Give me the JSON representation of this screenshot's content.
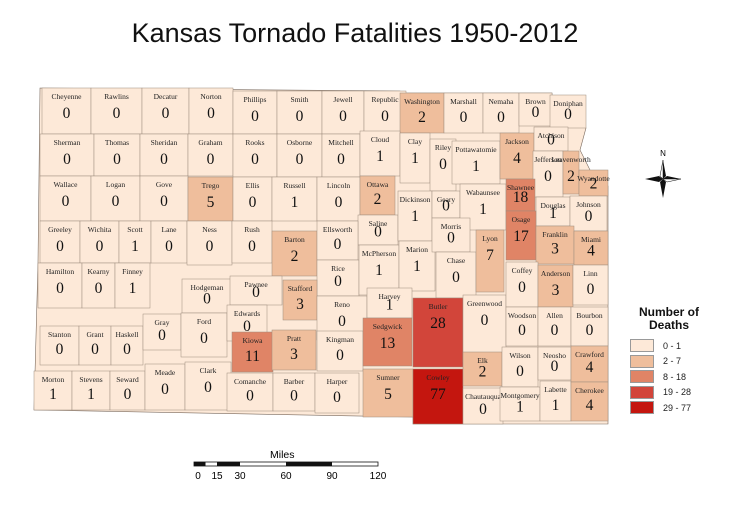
{
  "title": "Kansas Tornado Fatalities 1950-2012",
  "legend": {
    "title_line1": "Number of",
    "title_line2": "Deaths",
    "classes": [
      {
        "label": "0 - 1",
        "color": "#fde9d8"
      },
      {
        "label": "2 - 7",
        "color": "#efbe9c"
      },
      {
        "label": "8 - 18",
        "color": "#e08466"
      },
      {
        "label": "19 - 28",
        "color": "#d2453a"
      },
      {
        "label": "29 - 77",
        "color": "#c4160f"
      }
    ]
  },
  "scale_bar": {
    "units": "Miles",
    "ticks": [
      "0",
      "15",
      "30",
      "60",
      "90",
      "120"
    ]
  },
  "north_arrow": {
    "label": "N",
    "icon": "compass-rose-icon"
  },
  "counties": [
    {
      "name": "Cheyenne",
      "deaths": 0
    },
    {
      "name": "Rawlins",
      "deaths": 0
    },
    {
      "name": "Decatur",
      "deaths": 0
    },
    {
      "name": "Norton",
      "deaths": 0
    },
    {
      "name": "Phillips",
      "deaths": 0
    },
    {
      "name": "Smith",
      "deaths": 0
    },
    {
      "name": "Jewell",
      "deaths": 0
    },
    {
      "name": "Republic",
      "deaths": 0
    },
    {
      "name": "Washington",
      "deaths": 2
    },
    {
      "name": "Marshall",
      "deaths": 0
    },
    {
      "name": "Nemaha",
      "deaths": 0
    },
    {
      "name": "Brown",
      "deaths": 0
    },
    {
      "name": "Doniphan",
      "deaths": 0
    },
    {
      "name": "Sherman",
      "deaths": 0
    },
    {
      "name": "Thomas",
      "deaths": 0
    },
    {
      "name": "Sheridan",
      "deaths": 0
    },
    {
      "name": "Graham",
      "deaths": 0
    },
    {
      "name": "Rooks",
      "deaths": 0
    },
    {
      "name": "Osborne",
      "deaths": 0
    },
    {
      "name": "Mitchell",
      "deaths": 0
    },
    {
      "name": "Cloud",
      "deaths": 1
    },
    {
      "name": "Clay",
      "deaths": 1
    },
    {
      "name": "Riley",
      "deaths": 0
    },
    {
      "name": "Pottawatomie",
      "deaths": 1
    },
    {
      "name": "Jackson",
      "deaths": 4
    },
    {
      "name": "Atchison",
      "deaths": 0
    },
    {
      "name": "Jefferson",
      "deaths": 0
    },
    {
      "name": "Leavenworth",
      "deaths": 2
    },
    {
      "name": "Wyandotte",
      "deaths": 2
    },
    {
      "name": "Wallace",
      "deaths": 0
    },
    {
      "name": "Logan",
      "deaths": 0
    },
    {
      "name": "Gove",
      "deaths": 0
    },
    {
      "name": "Trego",
      "deaths": 5
    },
    {
      "name": "Ellis",
      "deaths": 0
    },
    {
      "name": "Russell",
      "deaths": 1
    },
    {
      "name": "Lincoln",
      "deaths": 0
    },
    {
      "name": "Ottawa",
      "deaths": 2
    },
    {
      "name": "Saline",
      "deaths": 0
    },
    {
      "name": "Dickinson",
      "deaths": 1
    },
    {
      "name": "Geary",
      "deaths": 0
    },
    {
      "name": "Wabaunsee",
      "deaths": 1
    },
    {
      "name": "Shawnee",
      "deaths": 18
    },
    {
      "name": "Douglas",
      "deaths": 1
    },
    {
      "name": "Johnson",
      "deaths": 0
    },
    {
      "name": "Greeley",
      "deaths": 0
    },
    {
      "name": "Wichita",
      "deaths": 0
    },
    {
      "name": "Scott",
      "deaths": 1
    },
    {
      "name": "Lane",
      "deaths": 0
    },
    {
      "name": "Ness",
      "deaths": 0
    },
    {
      "name": "Rush",
      "deaths": 0
    },
    {
      "name": "Barton",
      "deaths": 2
    },
    {
      "name": "Ellsworth",
      "deaths": 0
    },
    {
      "name": "Rice",
      "deaths": 0
    },
    {
      "name": "McPherson",
      "deaths": 1
    },
    {
      "name": "Marion",
      "deaths": 1
    },
    {
      "name": "Morris",
      "deaths": 0
    },
    {
      "name": "Chase",
      "deaths": 0
    },
    {
      "name": "Lyon",
      "deaths": 7
    },
    {
      "name": "Osage",
      "deaths": 17
    },
    {
      "name": "Franklin",
      "deaths": 3
    },
    {
      "name": "Miami",
      "deaths": 4
    },
    {
      "name": "Hamilton",
      "deaths": 0
    },
    {
      "name": "Kearny",
      "deaths": 0
    },
    {
      "name": "Finney",
      "deaths": 1
    },
    {
      "name": "Hodgeman",
      "deaths": 0
    },
    {
      "name": "Pawnee",
      "deaths": 0
    },
    {
      "name": "Stafford",
      "deaths": 3
    },
    {
      "name": "Reno",
      "deaths": 0
    },
    {
      "name": "Harvey",
      "deaths": 1
    },
    {
      "name": "Butler",
      "deaths": 28
    },
    {
      "name": "Greenwood",
      "deaths": 0
    },
    {
      "name": "Coffey",
      "deaths": 0
    },
    {
      "name": "Anderson",
      "deaths": 3
    },
    {
      "name": "Linn",
      "deaths": 0
    },
    {
      "name": "Stanton",
      "deaths": 0
    },
    {
      "name": "Grant",
      "deaths": 0
    },
    {
      "name": "Haskell",
      "deaths": 0
    },
    {
      "name": "Gray",
      "deaths": 0
    },
    {
      "name": "Ford",
      "deaths": 0
    },
    {
      "name": "Edwards",
      "deaths": 0
    },
    {
      "name": "Kiowa",
      "deaths": 11
    },
    {
      "name": "Pratt",
      "deaths": 3
    },
    {
      "name": "Kingman",
      "deaths": 0
    },
    {
      "name": "Sedgwick",
      "deaths": 13
    },
    {
      "name": "Woodson",
      "deaths": 0
    },
    {
      "name": "Allen",
      "deaths": 0
    },
    {
      "name": "Bourbon",
      "deaths": 0
    },
    {
      "name": "Morton",
      "deaths": 1
    },
    {
      "name": "Stevens",
      "deaths": 1
    },
    {
      "name": "Seward",
      "deaths": 0
    },
    {
      "name": "Meade",
      "deaths": 0
    },
    {
      "name": "Clark",
      "deaths": 0
    },
    {
      "name": "Comanche",
      "deaths": 0
    },
    {
      "name": "Barber",
      "deaths": 0
    },
    {
      "name": "Harper",
      "deaths": 0
    },
    {
      "name": "Sumner",
      "deaths": 5
    },
    {
      "name": "Cowley",
      "deaths": 77
    },
    {
      "name": "Elk",
      "deaths": 2
    },
    {
      "name": "Chautauqua",
      "deaths": 0
    },
    {
      "name": "Wilson",
      "deaths": 0
    },
    {
      "name": "Neosho",
      "deaths": 0
    },
    {
      "name": "Montgomery",
      "deaths": 1
    },
    {
      "name": "Labette",
      "deaths": 1
    },
    {
      "name": "Crawford",
      "deaths": 4
    },
    {
      "name": "Cherokee",
      "deaths": 4
    }
  ]
}
